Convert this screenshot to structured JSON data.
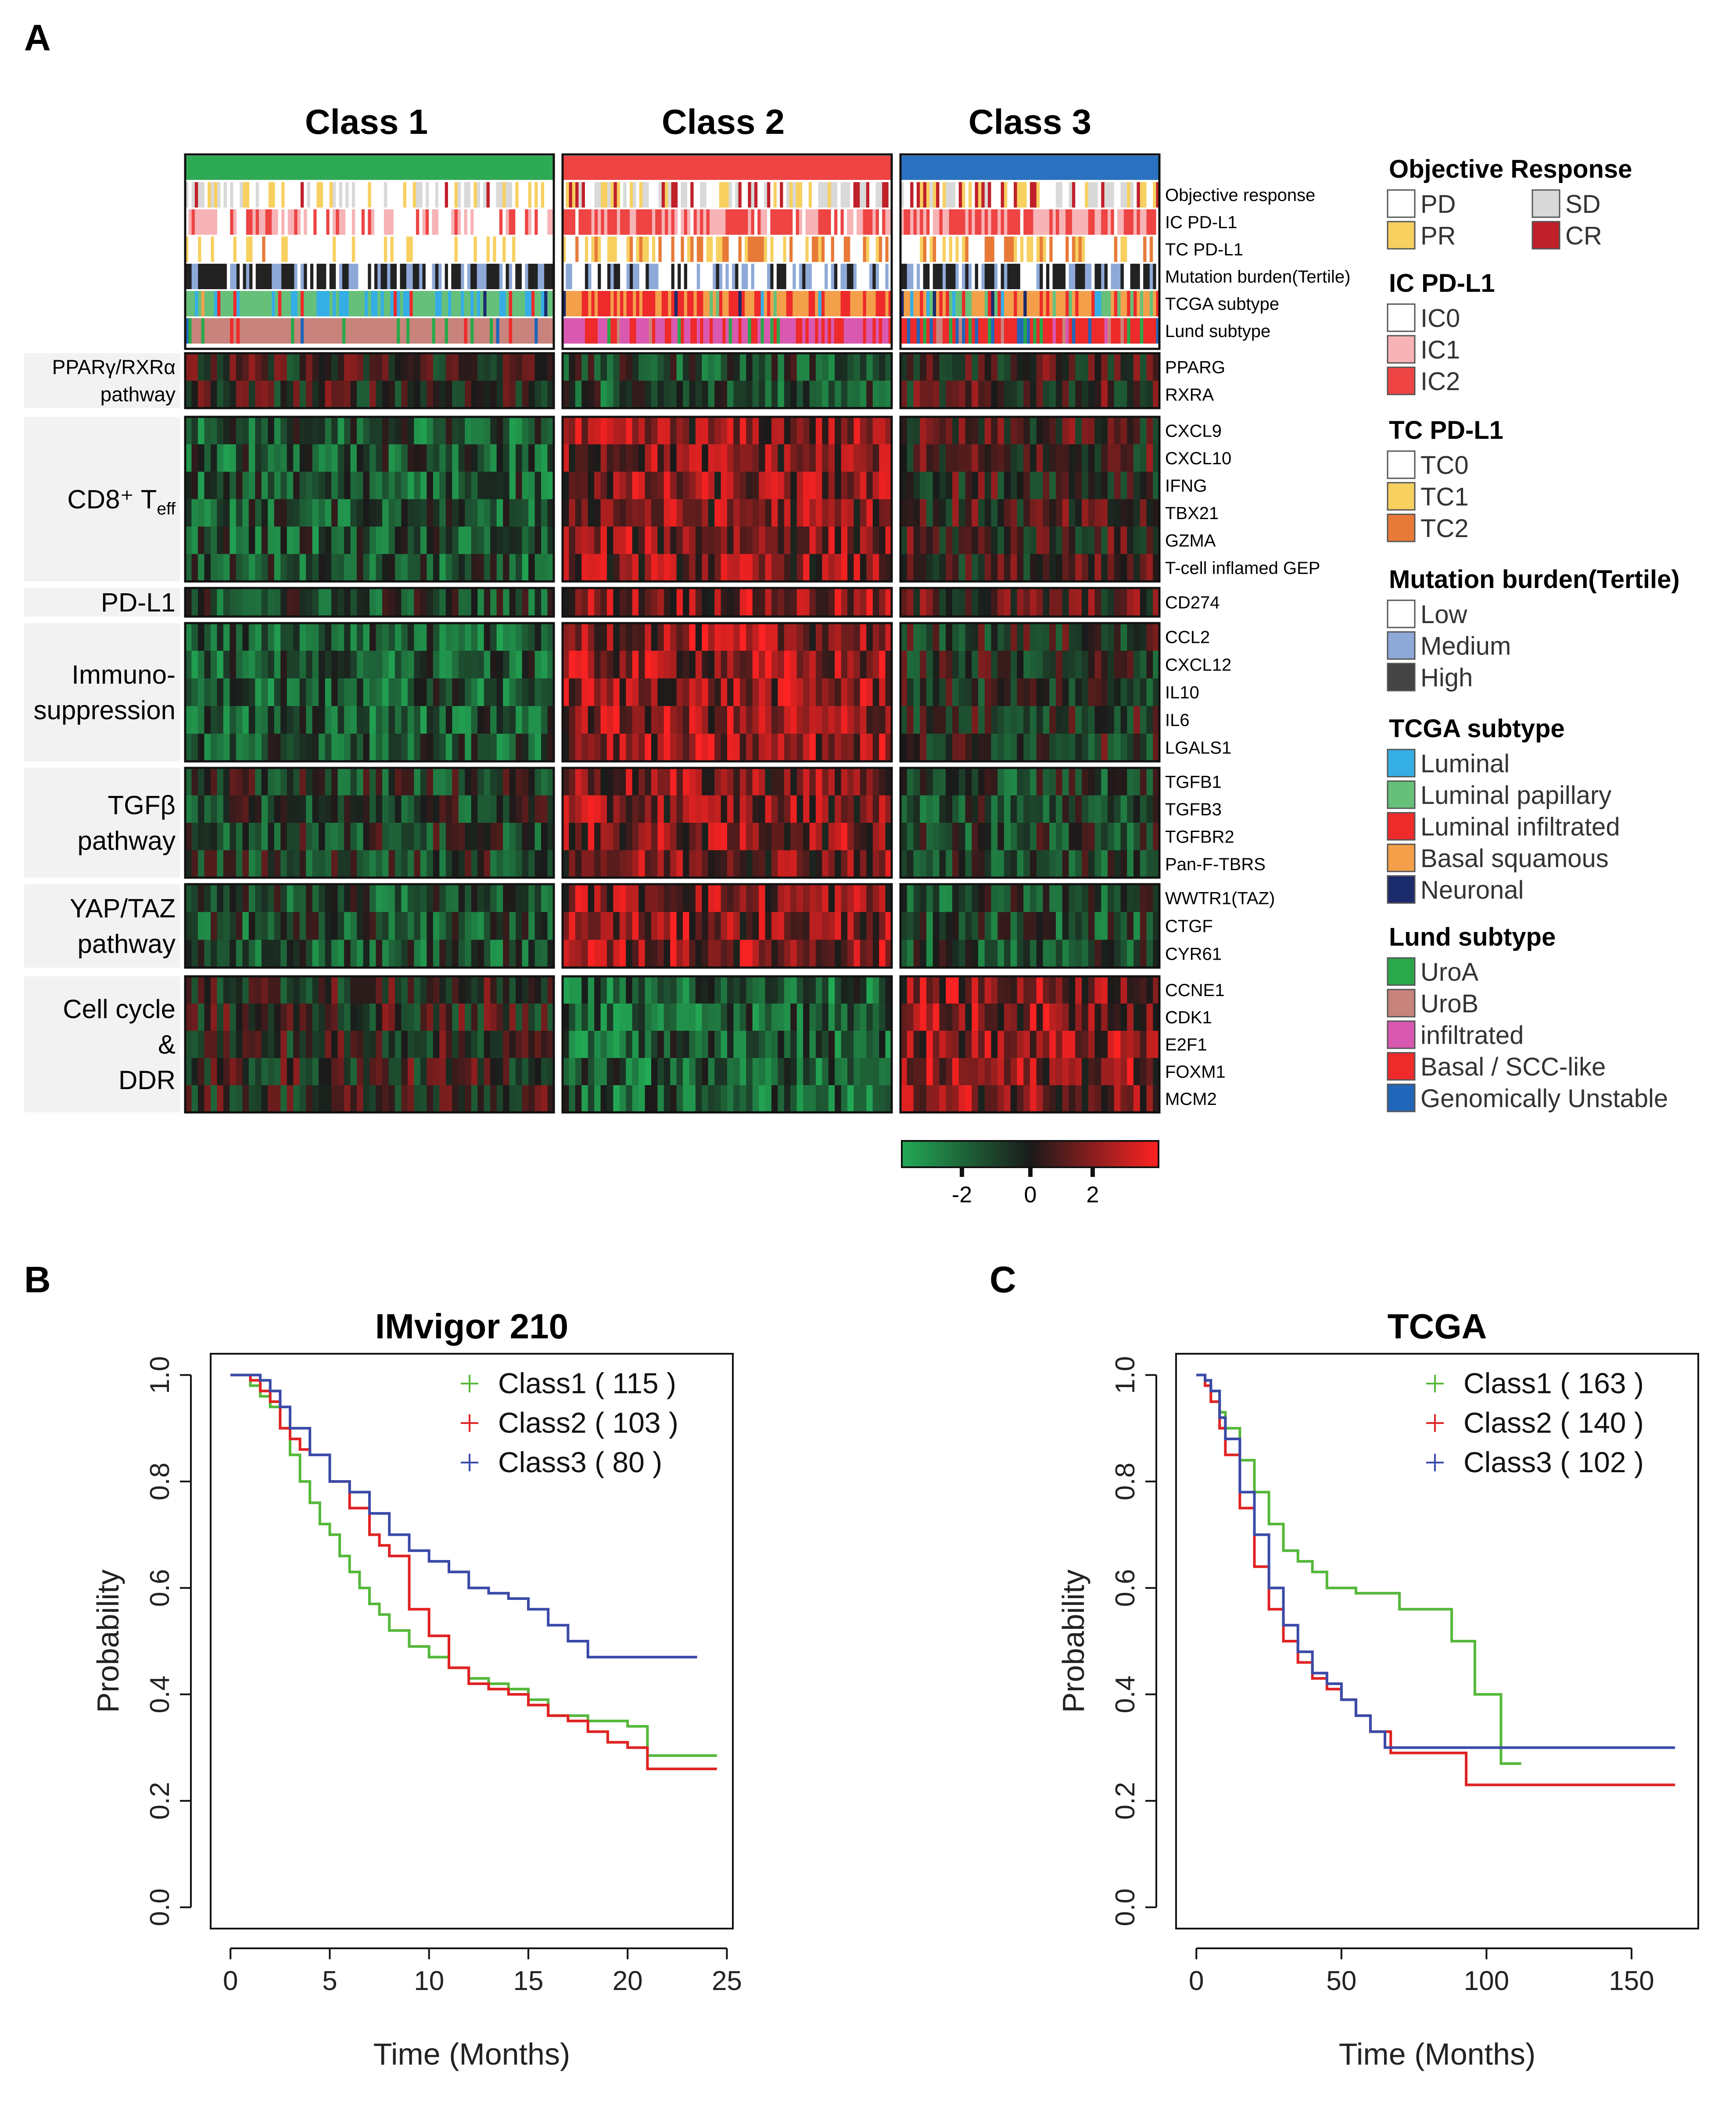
{
  "panels": {
    "a_label": "A",
    "b_label": "B",
    "c_label": "C"
  },
  "heatmap": {
    "classes": [
      {
        "name": "Class 1",
        "color": "#2eaa55"
      },
      {
        "name": "Class 2",
        "color": "#ee4444"
      },
      {
        "name": "Class 3",
        "color": "#2a72c0"
      }
    ],
    "annotation_rows": [
      "Objective response",
      "IC PD-L1",
      "TC PD-L1",
      "Mutation burden(Tertile)",
      "TCGA subtype",
      "Lund subtype"
    ],
    "groups": [
      {
        "label_lines": [
          "PPARγ/RXRα",
          "pathway"
        ],
        "genes": [
          "PPARG",
          "RXRA"
        ]
      },
      {
        "label_lines": [
          "CD8⁺ T_eff"
        ],
        "genes": [
          "CXCL9",
          "CXCL10",
          "IFNG",
          "TBX21",
          "GZMA",
          "T-cell inflamed GEP"
        ]
      },
      {
        "label_lines": [
          "PD-L1"
        ],
        "genes": [
          "CD274"
        ]
      },
      {
        "label_lines": [
          "Immuno-",
          "suppression"
        ],
        "genes": [
          "CCL2",
          "CXCL12",
          "IL10",
          "IL6",
          "LGALS1"
        ]
      },
      {
        "label_lines": [
          "TGFβ",
          "pathway"
        ],
        "genes": [
          "TGFB1",
          "TGFB3",
          "TGFBR2",
          "Pan-F-TBRS"
        ]
      },
      {
        "label_lines": [
          "YAP/TAZ",
          "pathway"
        ],
        "genes": [
          "WWTR1(TAZ)",
          "CTGF",
          "CYR61"
        ]
      },
      {
        "label_lines": [
          "Cell cycle",
          "&",
          "DDR"
        ],
        "genes": [
          "CCNE1",
          "CDK1",
          "E2F1",
          "FOXM1",
          "MCM2"
        ]
      }
    ],
    "colorkey": {
      "ticks": [
        "-2",
        "0",
        "2"
      ],
      "low_color": "#22aa55",
      "mid_color": "#1a1a1a",
      "high_color": "#ff2222"
    }
  },
  "legend": [
    {
      "title": "Objective Response",
      "two_column": true,
      "items": [
        {
          "label": "PD",
          "color": "#ffffff"
        },
        {
          "label": "SD",
          "color": "#d9d9d9"
        },
        {
          "label": "PR",
          "color": "#f7d060"
        },
        {
          "label": "CR",
          "color": "#c0202a"
        }
      ]
    },
    {
      "title": "IC PD-L1",
      "items": [
        {
          "label": "IC0",
          "color": "#ffffff"
        },
        {
          "label": "IC1",
          "color": "#f7b3b5"
        },
        {
          "label": "IC2",
          "color": "#ee4444"
        }
      ]
    },
    {
      "title": "TC PD-L1",
      "items": [
        {
          "label": "TC0",
          "color": "#ffffff"
        },
        {
          "label": "TC1",
          "color": "#f7d060"
        },
        {
          "label": "TC2",
          "color": "#e87a38"
        }
      ]
    },
    {
      "title": "Mutation burden(Tertile)",
      "items": [
        {
          "label": "Low",
          "color": "#ffffff"
        },
        {
          "label": "Medium",
          "color": "#8ea9d8"
        },
        {
          "label": "High",
          "color": "#444444"
        }
      ]
    },
    {
      "title": "TCGA subtype",
      "items": [
        {
          "label": "Luminal",
          "color": "#35aee6"
        },
        {
          "label": "Luminal papillary",
          "color": "#66c07a"
        },
        {
          "label": "Luminal infiltrated",
          "color": "#ee2a2a"
        },
        {
          "label": "Basal squamous",
          "color": "#f4a04a"
        },
        {
          "label": "Neuronal",
          "color": "#1b2a6b"
        }
      ]
    },
    {
      "title": "Lund subtype",
      "items": [
        {
          "label": "UroA",
          "color": "#2aa84a"
        },
        {
          "label": "UroB",
          "color": "#c8837c"
        },
        {
          "label": "infiltrated",
          "color": "#d958b0"
        },
        {
          "label": "Basal / SCC-like",
          "color": "#ee2a2a"
        },
        {
          "label": "Genomically Unstable",
          "color": "#2166b8"
        }
      ]
    }
  ],
  "chart_data": [
    {
      "type": "line",
      "title": "IMvigor 210",
      "xlabel": "Time (Months)",
      "ylabel": "Probability",
      "xlim": [
        -1,
        25.3
      ],
      "ylim": [
        -0.04,
        1.04
      ],
      "xticks": [
        "0",
        "5",
        "10",
        "15",
        "20",
        "25"
      ],
      "yticks": [
        "0.0",
        "0.2",
        "0.4",
        "0.6",
        "0.8",
        "1.0"
      ],
      "legend_position": "top-right",
      "series": [
        {
          "name": "Class1 ( 115 )",
          "color": "#55b83a",
          "x": [
            0,
            1,
            1.5,
            2,
            2.5,
            3,
            3.5,
            4,
            4.5,
            5,
            5.5,
            6,
            6.5,
            7,
            7.5,
            8,
            9,
            10,
            11,
            12,
            13,
            14,
            15,
            16,
            18,
            20,
            21,
            24.5
          ],
          "y": [
            1.0,
            0.98,
            0.96,
            0.94,
            0.9,
            0.85,
            0.8,
            0.76,
            0.72,
            0.7,
            0.66,
            0.63,
            0.6,
            0.57,
            0.55,
            0.52,
            0.49,
            0.47,
            0.45,
            0.43,
            0.42,
            0.41,
            0.39,
            0.36,
            0.35,
            0.34,
            0.285,
            0.285
          ]
        },
        {
          "name": "Class2 ( 103 )",
          "color": "#e02222",
          "x": [
            0,
            1,
            1.5,
            2,
            2.5,
            3,
            3.5,
            4,
            5,
            6,
            7,
            7.5,
            8,
            9,
            10,
            11,
            12,
            13,
            14,
            15,
            16,
            17,
            18,
            19,
            20,
            21,
            24.5
          ],
          "y": [
            1.0,
            0.99,
            0.97,
            0.95,
            0.9,
            0.88,
            0.86,
            0.85,
            0.8,
            0.75,
            0.7,
            0.68,
            0.66,
            0.56,
            0.51,
            0.45,
            0.42,
            0.41,
            0.4,
            0.38,
            0.36,
            0.35,
            0.33,
            0.31,
            0.3,
            0.26,
            0.26
          ]
        },
        {
          "name": "Class3 ( 80 )",
          "color": "#3a4aa8",
          "x": [
            0,
            1,
            1.5,
            2,
            2.5,
            3,
            4,
            5,
            6,
            7,
            8,
            9,
            10,
            11,
            12,
            13,
            14,
            15,
            16,
            17,
            18,
            20,
            22,
            23.5
          ],
          "y": [
            1.0,
            1.0,
            0.99,
            0.97,
            0.94,
            0.9,
            0.85,
            0.8,
            0.78,
            0.74,
            0.7,
            0.67,
            0.65,
            0.63,
            0.6,
            0.59,
            0.58,
            0.56,
            0.53,
            0.5,
            0.47,
            0.47,
            0.47,
            0.47
          ]
        }
      ]
    },
    {
      "type": "line",
      "title": "TCGA",
      "xlabel": "Time (Months)",
      "ylabel": "Probability",
      "xlim": [
        -7,
        173
      ],
      "ylim": [
        -0.04,
        1.04
      ],
      "xticks": [
        "0",
        "50",
        "100",
        "150"
      ],
      "yticks": [
        "0.0",
        "0.2",
        "0.4",
        "0.6",
        "0.8",
        "1.0"
      ],
      "legend_position": "top-right",
      "series": [
        {
          "name": "Class1 ( 163 )",
          "color": "#55b83a",
          "x": [
            0,
            3,
            5,
            8,
            10,
            15,
            20,
            25,
            30,
            35,
            40,
            45,
            55,
            70,
            88,
            96,
            105,
            112
          ],
          "y": [
            1.0,
            0.99,
            0.97,
            0.93,
            0.9,
            0.84,
            0.78,
            0.72,
            0.67,
            0.65,
            0.63,
            0.6,
            0.59,
            0.56,
            0.5,
            0.4,
            0.27,
            0.27
          ]
        },
        {
          "name": "Class2 ( 140 )",
          "color": "#e02222",
          "x": [
            0,
            3,
            5,
            8,
            10,
            15,
            20,
            25,
            30,
            35,
            40,
            45,
            50,
            55,
            60,
            67,
            80,
            93,
            165
          ],
          "y": [
            1.0,
            0.98,
            0.95,
            0.9,
            0.85,
            0.75,
            0.64,
            0.56,
            0.5,
            0.46,
            0.43,
            0.41,
            0.39,
            0.36,
            0.33,
            0.29,
            0.29,
            0.23,
            0.23
          ]
        },
        {
          "name": "Class3 ( 102 )",
          "color": "#3a4aa8",
          "x": [
            0,
            3,
            5,
            8,
            10,
            15,
            20,
            25,
            30,
            35,
            40,
            45,
            50,
            55,
            60,
            65,
            165
          ],
          "y": [
            1.0,
            0.99,
            0.97,
            0.92,
            0.88,
            0.78,
            0.7,
            0.6,
            0.53,
            0.48,
            0.44,
            0.42,
            0.39,
            0.36,
            0.33,
            0.3,
            0.3
          ]
        }
      ]
    }
  ]
}
